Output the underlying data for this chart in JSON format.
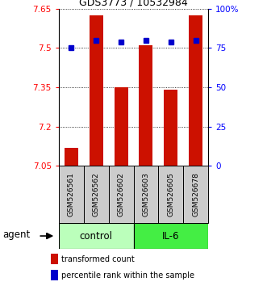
{
  "title": "GDS3773 / 10532984",
  "samples": [
    "GSM526561",
    "GSM526562",
    "GSM526602",
    "GSM526603",
    "GSM526605",
    "GSM526678"
  ],
  "bar_values": [
    7.12,
    7.625,
    7.35,
    7.51,
    7.34,
    7.625
  ],
  "percentile_values": [
    75,
    80,
    79,
    80,
    79,
    80
  ],
  "ylim_left": [
    7.05,
    7.65
  ],
  "ylim_right": [
    0,
    100
  ],
  "yticks_left": [
    7.05,
    7.2,
    7.35,
    7.5,
    7.65
  ],
  "yticks_right": [
    0,
    25,
    50,
    75,
    100
  ],
  "ytick_labels_left": [
    "7.05",
    "7.2",
    "7.35",
    "7.5",
    "7.65"
  ],
  "ytick_labels_right": [
    "0",
    "25",
    "50",
    "75",
    "100%"
  ],
  "bar_color": "#cc1100",
  "square_color": "#0000cc",
  "control_color": "#bbffbb",
  "il6_color": "#44ee44",
  "control_label": "control",
  "il6_label": "IL-6",
  "agent_label": "agent",
  "legend_bar_label": "transformed count",
  "legend_sq_label": "percentile rank within the sample",
  "bar_width": 0.55,
  "base_value": 7.05,
  "label_box_color": "#cccccc",
  "title_fontsize": 9,
  "tick_fontsize": 7.5,
  "label_fontsize": 6.5,
  "group_fontsize": 8.5,
  "legend_fontsize": 7
}
